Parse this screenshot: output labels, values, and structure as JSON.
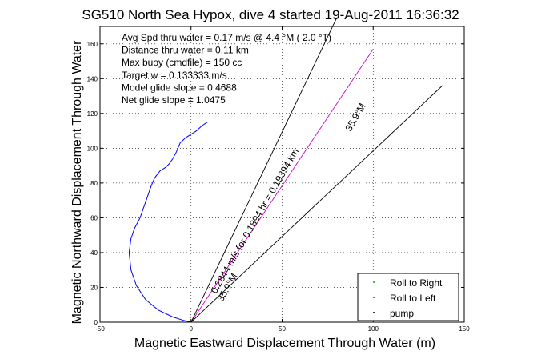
{
  "chart_data": {
    "type": "line",
    "title": "SG510 North Sea Hypox, dive 4 started 19-Aug-2011 16:36:32",
    "xlabel": "Magnetic Eastward Displacement Through Water (m)",
    "ylabel": "Magnetic Northward Displacement Through Water",
    "xlim": [
      -50,
      150
    ],
    "ylim": [
      0,
      170
    ],
    "xticks": [
      -50,
      0,
      50,
      100,
      150
    ],
    "yticks": [
      0,
      20,
      40,
      60,
      80,
      100,
      120,
      140,
      160
    ],
    "grid": true,
    "legend_position": "bottom-right",
    "info_lines": [
      "Avg Spd thru water =  0.17 m/s @   4.4   °M ( 2.0 °T)",
      "Distance thru water =  0.11 km",
      "Max buoy (cmdfile) = 150 cc",
      "Target w = 0.133333 m/s",
      "Model glide slope = 0.4688",
      "Net glide slope = 1.0475"
    ],
    "annotations": [
      "0.2844 m/s for 0.1894 hr = 0.19394 km",
      "35.9°M",
      "35.9°M"
    ],
    "legend": [
      {
        "label": "Roll to Right",
        "color": "#00aa00"
      },
      {
        "label": "Roll to Left",
        "color": "#ff0000"
      },
      {
        "label": "pump",
        "color": "#000000"
      }
    ],
    "series": [
      {
        "color": "#0000ff",
        "x": [
          0,
          -4,
          -10,
          -18,
          -25,
          -30,
          -33,
          -34,
          -33,
          -31,
          -28,
          -26,
          -24,
          -22,
          -20,
          -17,
          -14,
          -12,
          -10,
          -8,
          -6,
          -3,
          0,
          3,
          6,
          9
        ],
        "y": [
          0,
          1,
          3,
          7,
          13,
          21,
          30,
          40,
          48,
          54,
          60,
          66,
          72,
          78,
          83,
          87,
          89,
          91,
          94,
          98,
          103,
          106,
          108,
          110,
          113,
          115
        ]
      },
      {
        "color": "#cc00cc",
        "x": [
          0,
          100
        ],
        "y": [
          0,
          157
        ]
      },
      {
        "color": "#000000",
        "x": [
          0,
          80
        ],
        "y": [
          0,
          175
        ]
      },
      {
        "color": "#000000",
        "x": [
          0,
          138
        ],
        "y": [
          0,
          136
        ]
      }
    ]
  }
}
